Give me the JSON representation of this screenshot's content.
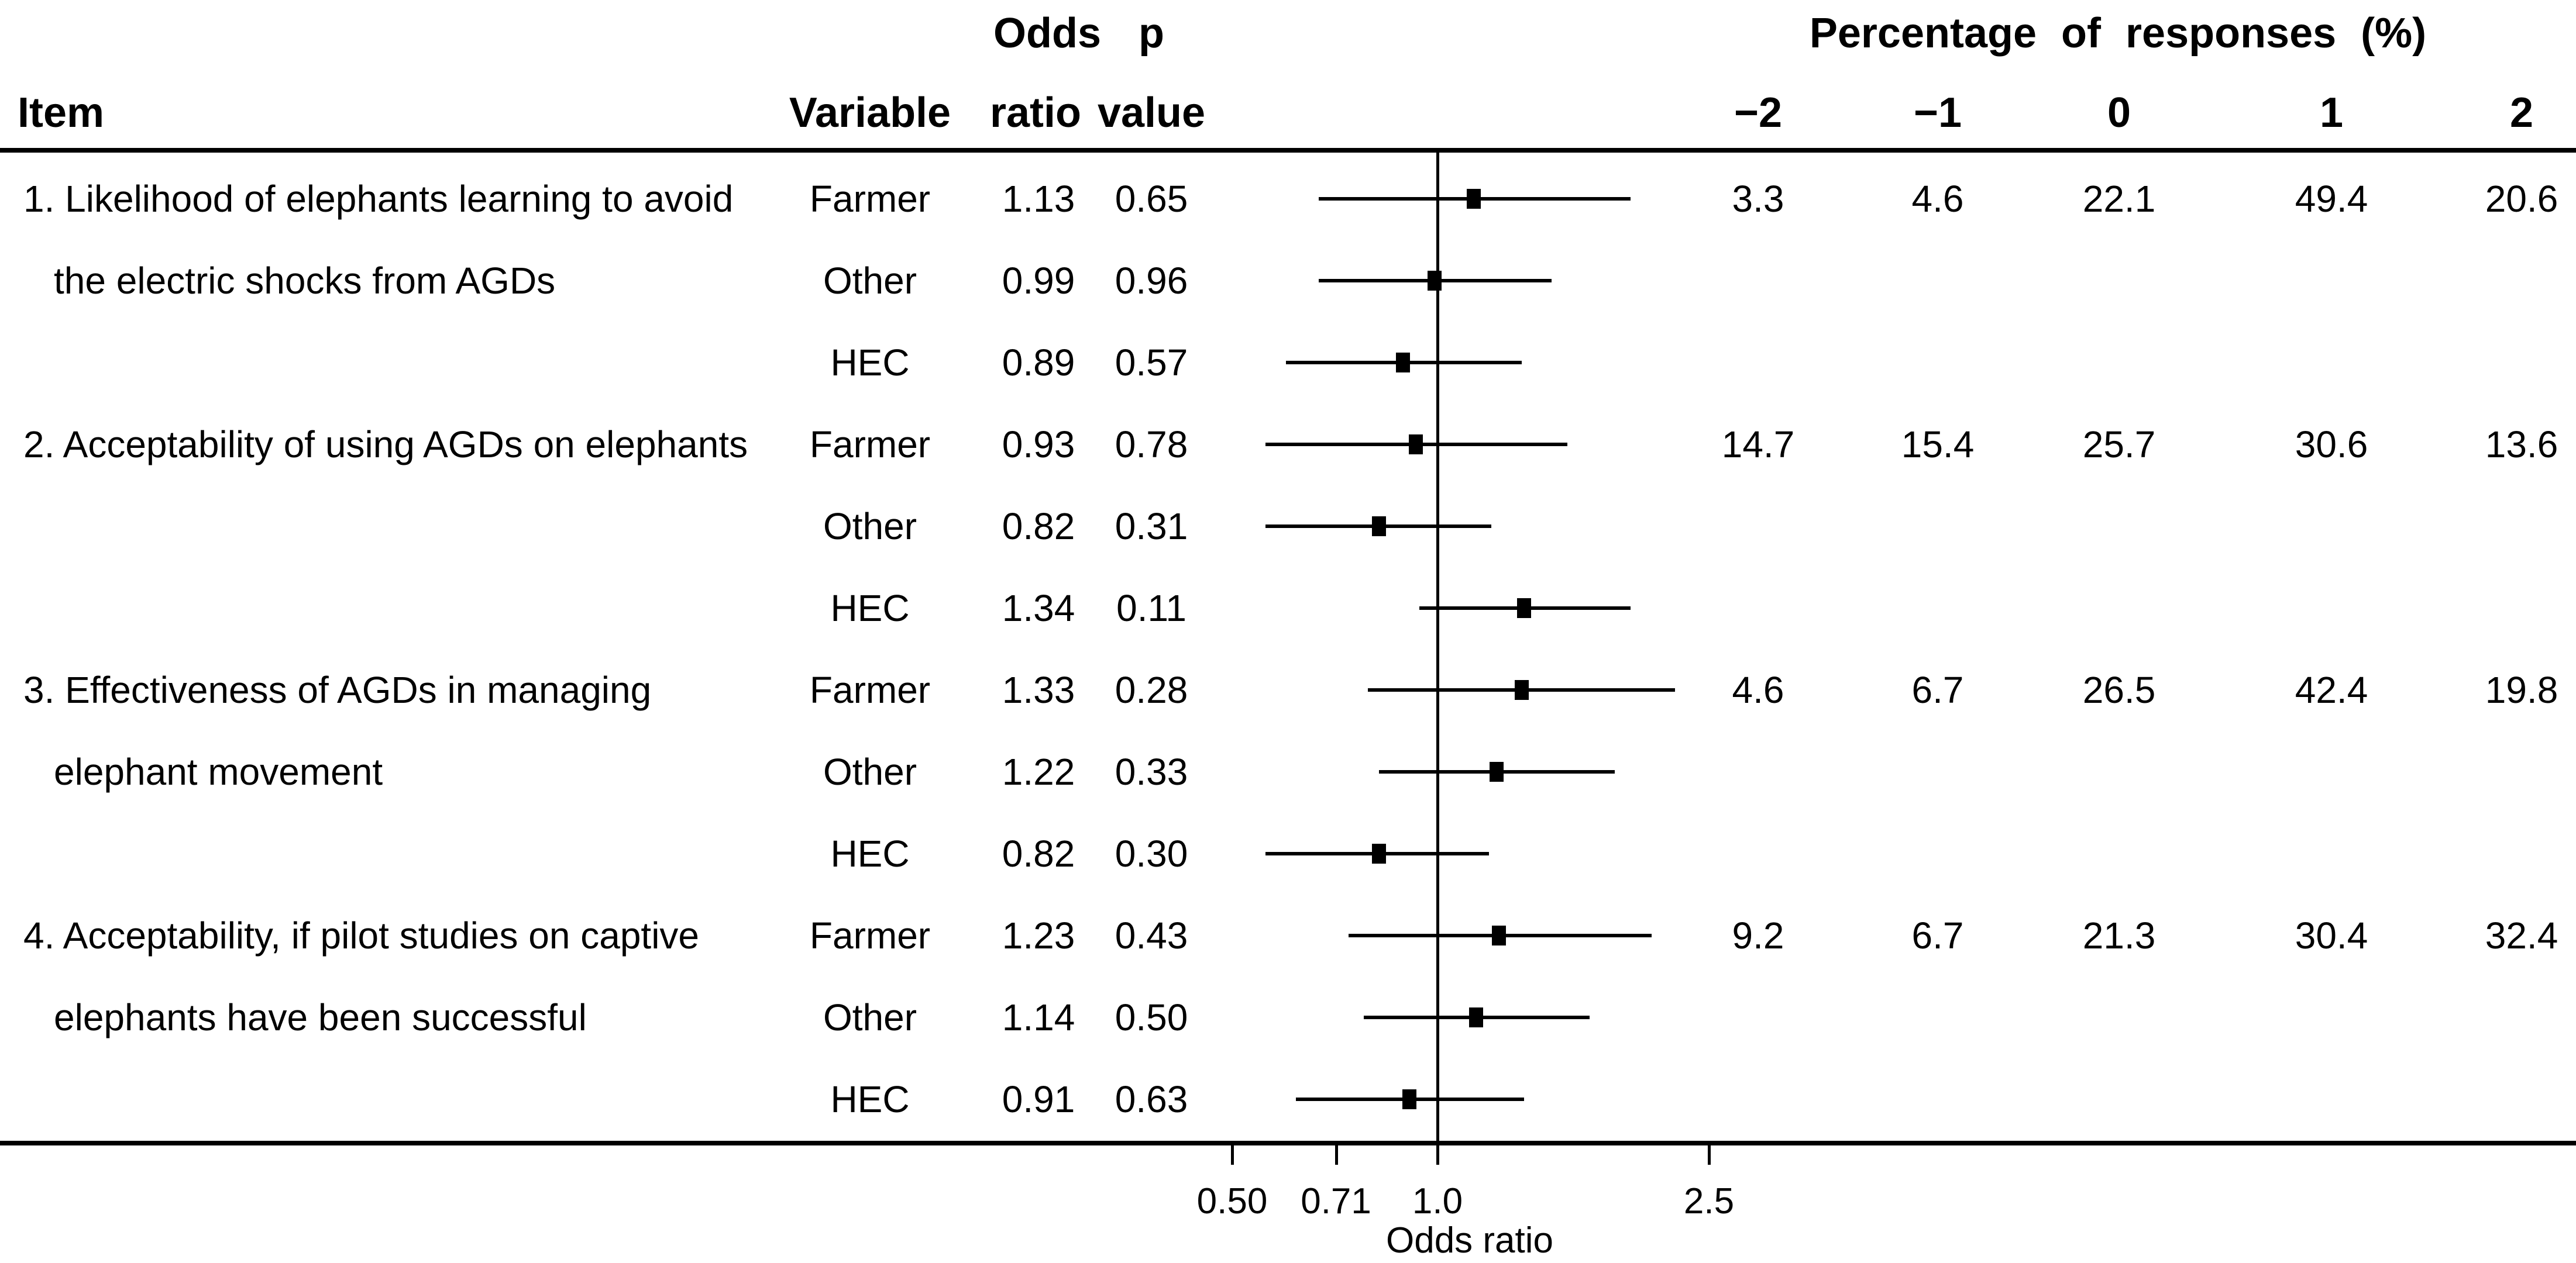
{
  "figure": {
    "headers": {
      "item": "Item",
      "variable": "Variable",
      "odds": "Odds",
      "ratio": "ratio",
      "p": "p",
      "value": "value",
      "percentage_title": "Percentage of responses (%)"
    },
    "colors": {
      "foreground": "#000000",
      "background": "#ffffff"
    }
  },
  "chart_data": {
    "type": "forest",
    "title": "",
    "xlabel": "Odds ratio",
    "x_scale": "log",
    "x_ticks": [
      0.5,
      0.71,
      1.0,
      2.5
    ],
    "x_tick_labels": [
      "0.50",
      "0.71",
      "1.0",
      "2.5"
    ],
    "reference_line": 1.0,
    "marker": "filled-square",
    "response_levels": [
      "−2",
      "−1",
      "0",
      "1",
      "2"
    ],
    "ci_note": "ci_low/ci_high estimated from plotted error bars (95% CI)",
    "items": [
      {
        "label_lines": [
          "1. Likelihood of elephants learning to avoid",
          "the electric shocks from AGDs"
        ],
        "percentages": [
          3.3,
          4.6,
          22.1,
          49.4,
          20.6
        ],
        "rows": [
          {
            "variable": "Farmer",
            "odds_ratio": 1.13,
            "p_value": "0.65",
            "ci_low": 0.67,
            "ci_high": 1.92
          },
          {
            "variable": "Other",
            "odds_ratio": 0.99,
            "p_value": "0.96",
            "ci_low": 0.67,
            "ci_high": 1.47
          },
          {
            "variable": "HEC",
            "odds_ratio": 0.89,
            "p_value": "0.57",
            "ci_low": 0.6,
            "ci_high": 1.33
          }
        ]
      },
      {
        "label_lines": [
          "2. Acceptability of using AGDs on elephants"
        ],
        "percentages": [
          14.7,
          15.4,
          25.7,
          30.6,
          13.6
        ],
        "rows": [
          {
            "variable": "Farmer",
            "odds_ratio": 0.93,
            "p_value": "0.78",
            "ci_low": 0.56,
            "ci_high": 1.55
          },
          {
            "variable": "Other",
            "odds_ratio": 0.82,
            "p_value": "0.31",
            "ci_low": 0.56,
            "ci_high": 1.2
          },
          {
            "variable": "HEC",
            "odds_ratio": 1.34,
            "p_value": "0.11",
            "ci_low": 0.94,
            "ci_high": 1.92
          }
        ]
      },
      {
        "label_lines": [
          "3. Effectiveness of AGDs in managing",
          "elephant movement"
        ],
        "percentages": [
          4.6,
          6.7,
          26.5,
          42.4,
          19.8
        ],
        "rows": [
          {
            "variable": "Farmer",
            "odds_ratio": 1.33,
            "p_value": "0.28",
            "ci_low": 0.79,
            "ci_high": 2.23
          },
          {
            "variable": "Other",
            "odds_ratio": 1.22,
            "p_value": "0.33",
            "ci_low": 0.82,
            "ci_high": 1.82
          },
          {
            "variable": "HEC",
            "odds_ratio": 0.82,
            "p_value": "0.30",
            "ci_low": 0.56,
            "ci_high": 1.19
          }
        ]
      },
      {
        "label_lines": [
          "4. Acceptability, if pilot studies on captive",
          "elephants have been successful"
        ],
        "percentages": [
          9.2,
          6.7,
          21.3,
          30.4,
          32.4
        ],
        "rows": [
          {
            "variable": "Farmer",
            "odds_ratio": 1.23,
            "p_value": "0.43",
            "ci_low": 0.74,
            "ci_high": 2.06
          },
          {
            "variable": "Other",
            "odds_ratio": 1.14,
            "p_value": "0.50",
            "ci_low": 0.78,
            "ci_high": 1.67
          },
          {
            "variable": "HEC",
            "odds_ratio": 0.91,
            "p_value": "0.63",
            "ci_low": 0.62,
            "ci_high": 1.34
          }
        ]
      }
    ]
  }
}
